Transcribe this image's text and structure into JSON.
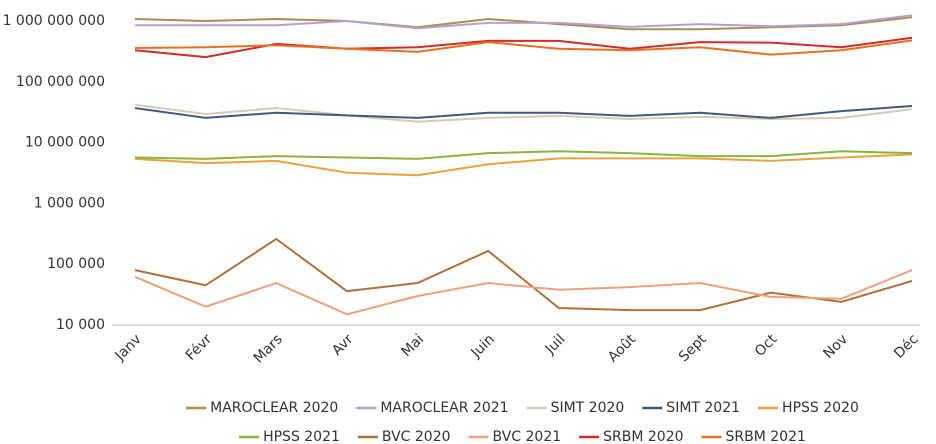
{
  "chart_data": {
    "type": "line",
    "log_scale": true,
    "grid": false,
    "legend": "bottom",
    "categories": [
      "Janv",
      "Févr",
      "Mars",
      "Avr",
      "Mai",
      "Juin",
      "Juil",
      "Août",
      "Sept",
      "Oct",
      "Nov",
      "Déc"
    ],
    "ylim": [
      10000,
      1000000000
    ],
    "yticks": [
      {
        "value": 10000,
        "label": "10 000"
      },
      {
        "value": 100000,
        "label": "100 000"
      },
      {
        "value": 1000000,
        "label": "1 000 000"
      },
      {
        "value": 10000000,
        "label": "10 000 000"
      },
      {
        "value": 100000000,
        "label": "100 000 000"
      },
      {
        "value": 1000000000,
        "label": "1 000 000 000"
      }
    ],
    "series": [
      {
        "name": "MAROCLEAR 2020",
        "color": "#b08a4e",
        "values": [
          1080000000,
          1000000000,
          1080000000,
          1000000000,
          790000000,
          1080000000,
          890000000,
          730000000,
          730000000,
          790000000,
          850000000,
          1150000000
        ]
      },
      {
        "name": "MAROCLEAR 2021",
        "color": "#b4a0d0",
        "values": [
          850000000,
          850000000,
          850000000,
          1000000000,
          760000000,
          930000000,
          930000000,
          800000000,
          890000000,
          820000000,
          890000000,
          1240000000
        ]
      },
      {
        "name": "SIMT 2020",
        "color": "#d6cbb3",
        "values": [
          42000000,
          29500000,
          37000000,
          28000000,
          22000000,
          25500000,
          27500000,
          24500000,
          26500000,
          24500000,
          25500000,
          35500000
        ]
      },
      {
        "name": "SIMT 2021",
        "color": "#3d5a80",
        "values": [
          37000000,
          25500000,
          31000000,
          28000000,
          25500000,
          31000000,
          31000000,
          27500000,
          31000000,
          25500000,
          33000000,
          40000000
        ]
      },
      {
        "name": "HPSS 2020",
        "color": "#e8a33a",
        "values": [
          5400000,
          4600000,
          5000000,
          3200000,
          2900000,
          4400000,
          5500000,
          5500000,
          5500000,
          5000000,
          5700000,
          6400000
        ]
      },
      {
        "name": "HPSS 2021",
        "color": "#8ab53a",
        "values": [
          5700000,
          5400000,
          6000000,
          5700000,
          5400000,
          6700000,
          7200000,
          6700000,
          6000000,
          6000000,
          7200000,
          6700000
        ]
      },
      {
        "name": "BVC 2020",
        "color": "#b5703a",
        "values": [
          80000,
          45000,
          260000,
          36000,
          49000,
          165000,
          19000,
          17600,
          17600,
          34000,
          24000,
          53000
        ]
      },
      {
        "name": "BVC 2021",
        "color": "#f0a07a",
        "values": [
          62000,
          20000,
          49000,
          15000,
          30000,
          49000,
          38000,
          42000,
          49000,
          29000,
          27000,
          80000
        ]
      },
      {
        "name": "SRBM 2020",
        "color": "#d42a2a",
        "values": [
          330000000,
          255000000,
          420000000,
          350000000,
          370000000,
          470000000,
          470000000,
          350000000,
          450000000,
          440000000,
          370000000,
          530000000
        ]
      },
      {
        "name": "SRBM 2021",
        "color": "#e8701e",
        "values": [
          360000000,
          370000000,
          400000000,
          350000000,
          310000000,
          450000000,
          350000000,
          330000000,
          370000000,
          280000000,
          330000000,
          480000000
        ]
      }
    ]
  }
}
